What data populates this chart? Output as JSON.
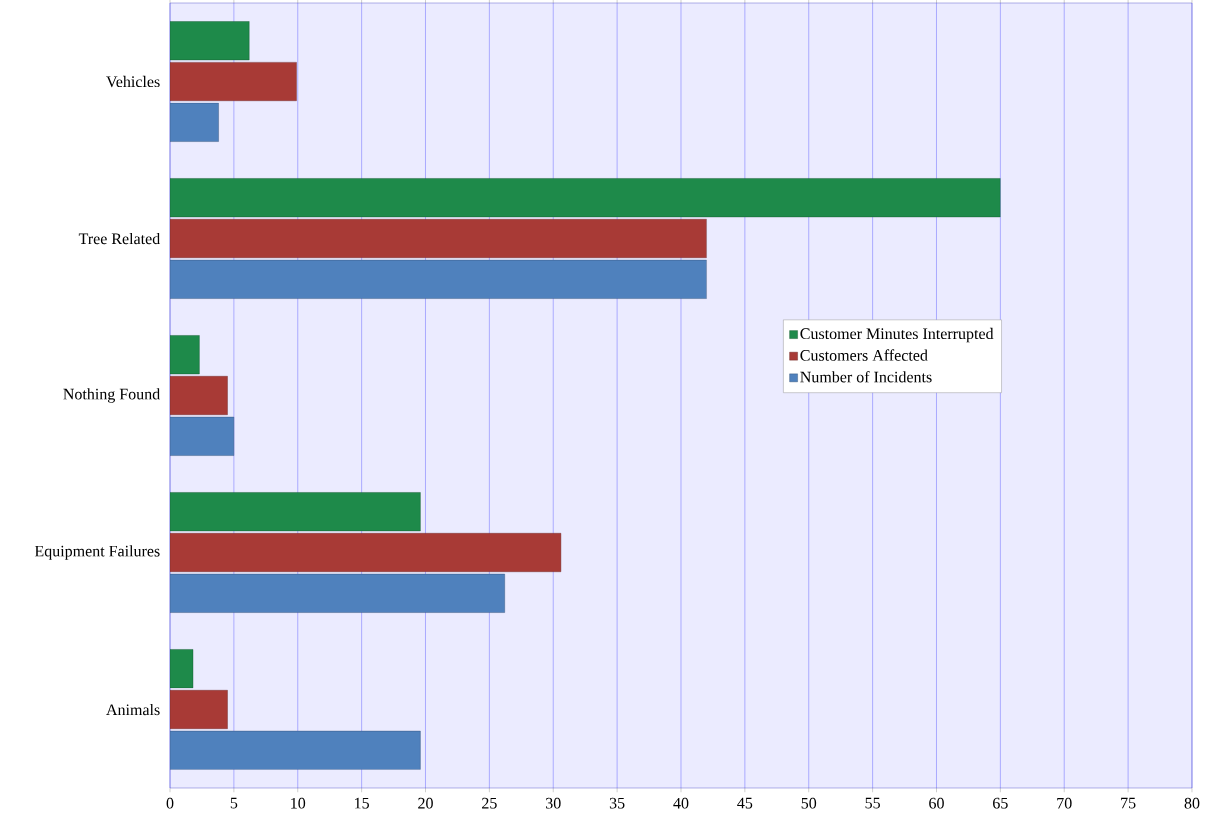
{
  "chart_data": {
    "type": "bar",
    "orientation": "horizontal",
    "categories": [
      "Vehicles",
      "Tree Related",
      "Nothing Found",
      "Equipment Failures",
      "Animals"
    ],
    "series": [
      {
        "name": "Customer Minutes Interrupted",
        "color": "#1e8a4a",
        "values": [
          6.2,
          65,
          2.3,
          19.6,
          1.8
        ]
      },
      {
        "name": "Customers Affected",
        "color": "#a83a36",
        "values": [
          9.9,
          42,
          4.5,
          30.6,
          4.5
        ]
      },
      {
        "name": "Number of Incidents",
        "color": "#4f81bd",
        "values": [
          3.8,
          42,
          5,
          26.2,
          19.6
        ]
      }
    ],
    "xlim": [
      0,
      80
    ],
    "xticks": [
      0,
      5,
      10,
      15,
      20,
      25,
      30,
      35,
      40,
      45,
      50,
      55,
      60,
      65,
      70,
      75,
      80
    ],
    "grid": "x",
    "legend": "right"
  }
}
